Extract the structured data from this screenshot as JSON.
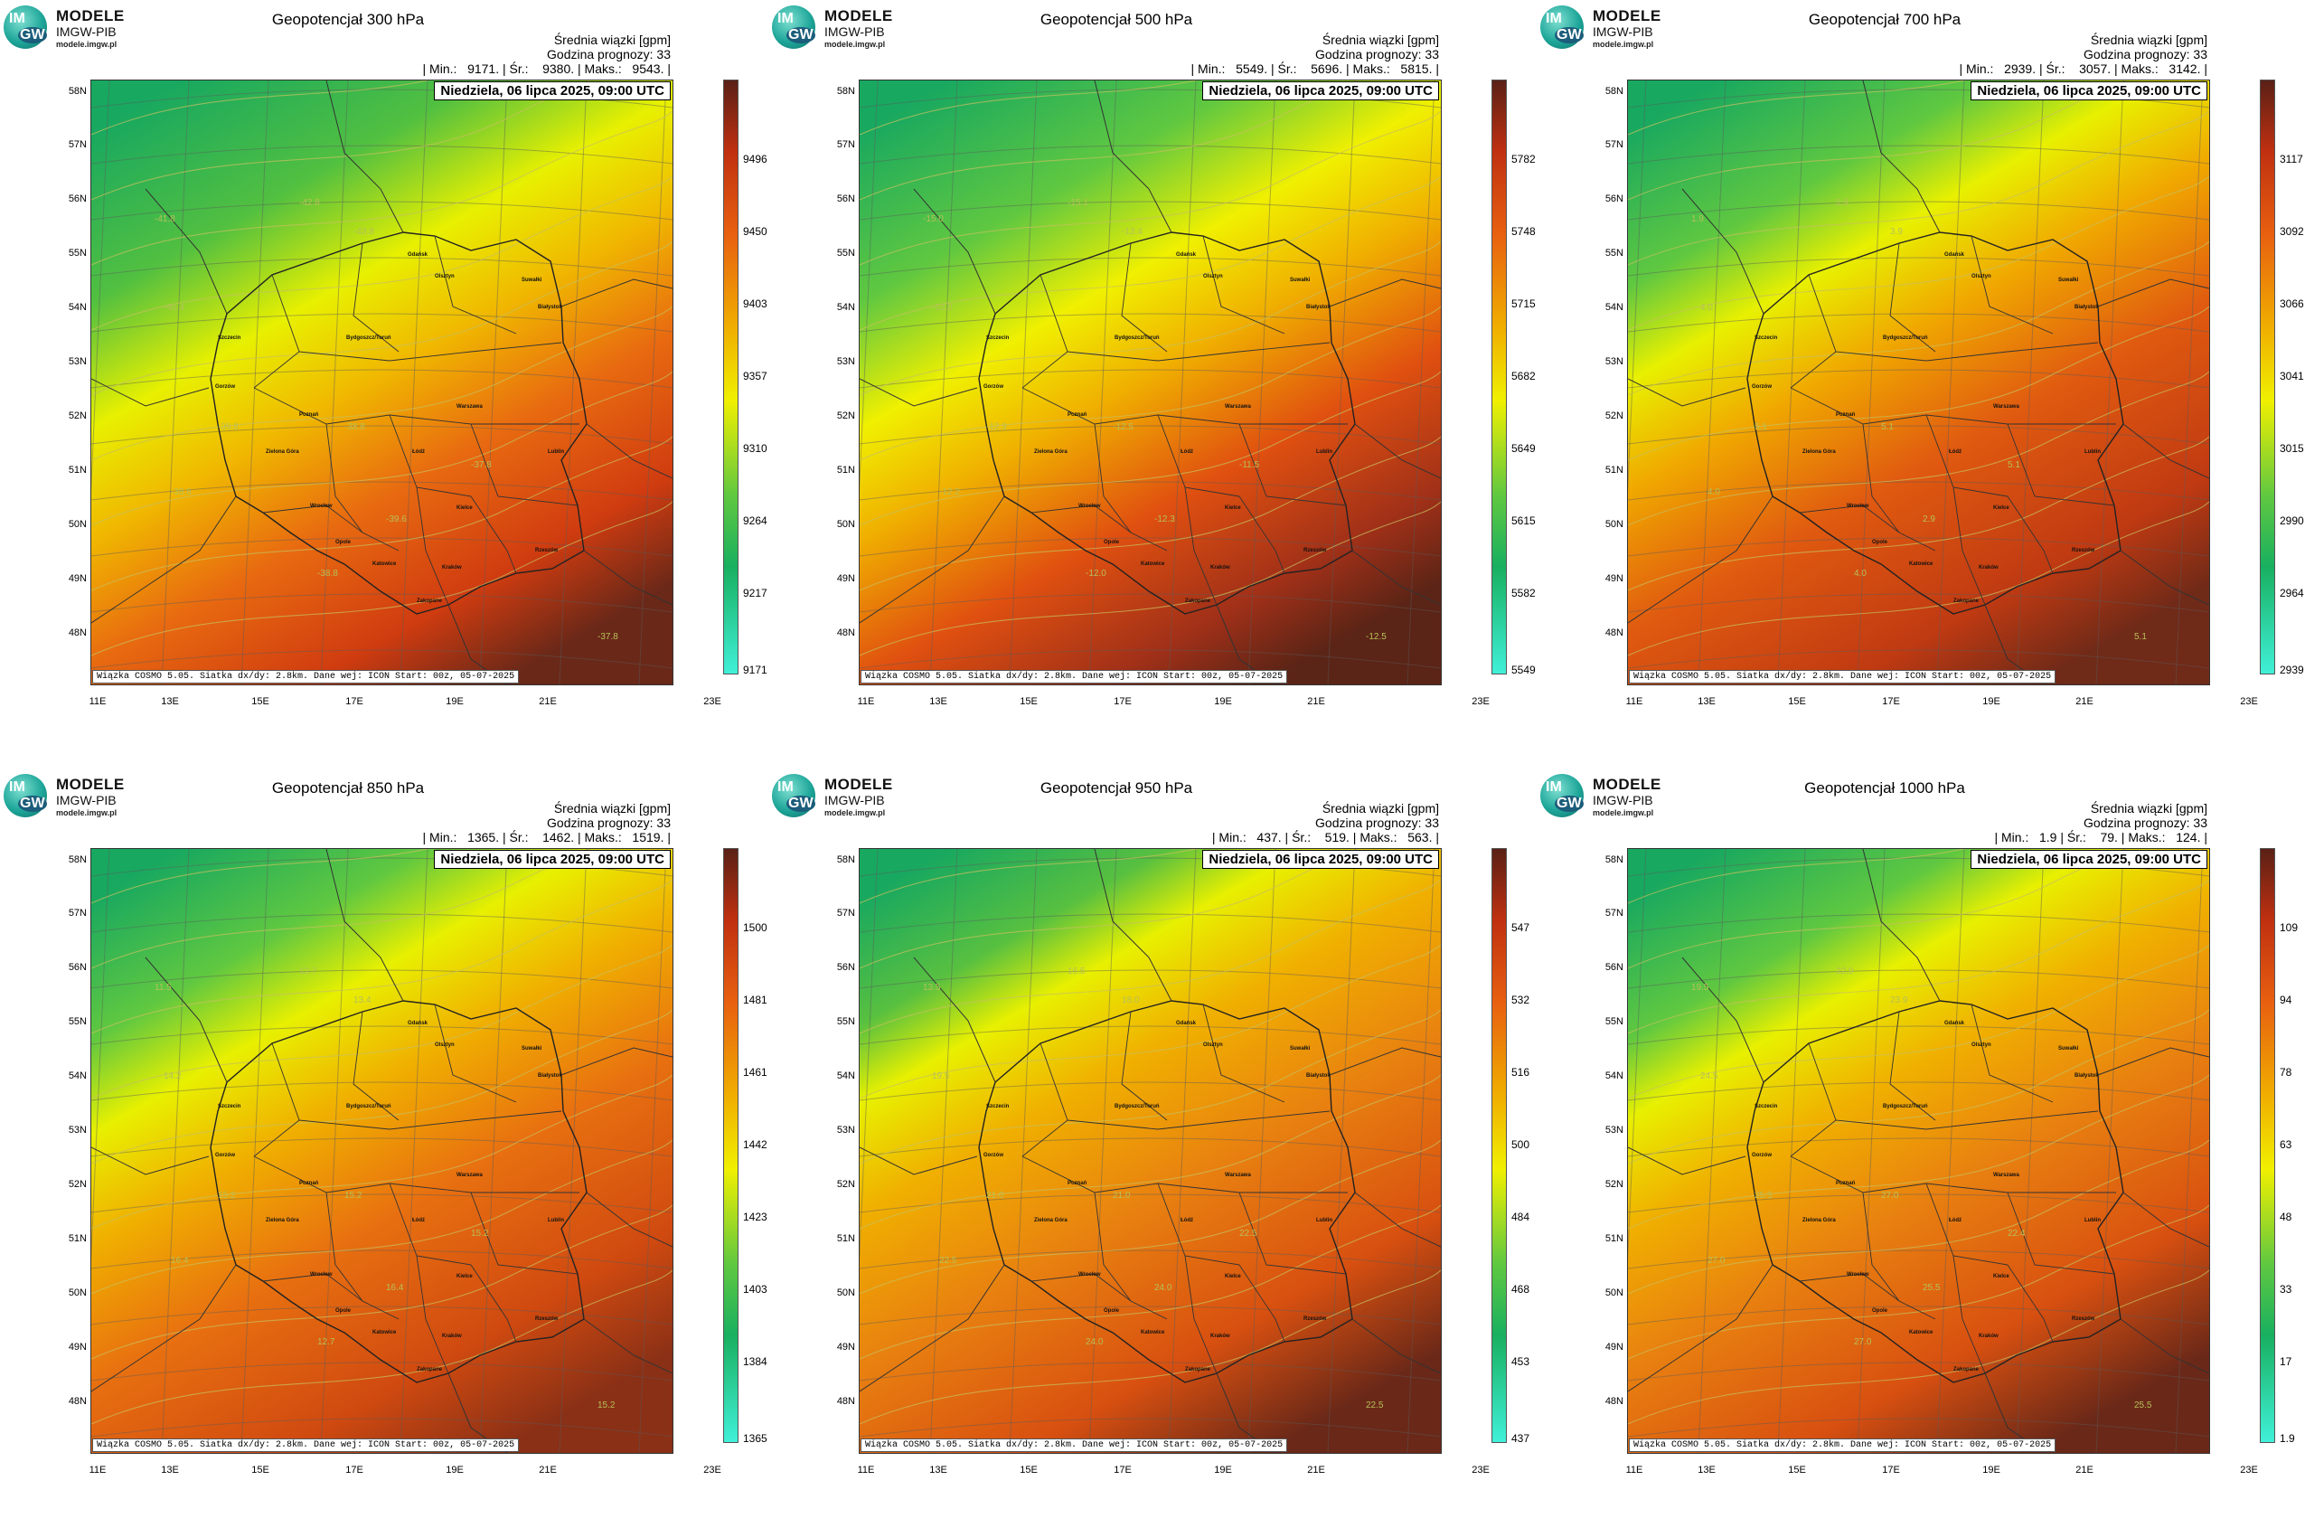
{
  "logo": {
    "im": "IM",
    "gw": "GW",
    "line1": "MODELE",
    "line2": "IMGW-PIB",
    "line3": "modele.imgw.pl"
  },
  "date": "Niedziela, 06 lipca 2025, 09:00 UTC",
  "mean_label": "Średnia wiązki [gpm]",
  "forecast_hour": "Godzina prognozy: 33",
  "footer": "Wiązka COSMO 5.05. Siatka dx/dy: 2.8km. Dane wej: ICON Start: 00z, 05-07-2025",
  "lat_labels": [
    "58N",
    "57N",
    "56N",
    "55N",
    "54N",
    "53N",
    "52N",
    "51N",
    "50N",
    "49N",
    "48N"
  ],
  "lon_labels": [
    "11E",
    "13E",
    "15E",
    "17E",
    "19E",
    "21E",
    "23E"
  ],
  "cities": [
    "Gdańsk",
    "Olsztyn",
    "Suwałki",
    "Szczecin",
    "Białystok",
    "Bydgoszcz/Toruń",
    "Gorzów",
    "Poznań",
    "Warszawa",
    "Zielona Góra",
    "Łódź",
    "Lublin",
    "Wrocław",
    "Kielce",
    "Opole",
    "Rzeszów",
    "Katowice",
    "Kraków",
    "Zakopane"
  ],
  "colors": {
    "low": "#40f0d8",
    "green": "#18b060",
    "yellow": "#f0f000",
    "orange": "#f0a000",
    "red": "#e04010",
    "darkred": "#6a2818"
  },
  "panels": [
    {
      "title": "Geopotencjał 300 hPa",
      "stats": "| Min.:   9171. | Śr.:    9380. | Maks.:   9543. |",
      "scale": [
        "9496",
        "9450",
        "9403",
        "9357",
        "9310",
        "9264",
        "9217",
        "9171"
      ],
      "contours": [
        "-41.8",
        "-42.8",
        "-43.8",
        "-40.4",
        "-39.8",
        "-38.8",
        "-38.6",
        "-39.6",
        "-37.8",
        "-38.8",
        "-37.8"
      ]
    },
    {
      "title": "Geopotencjał 500 hPa",
      "stats": "| Min.:   5549. | Śr.:    5696. | Maks.:   5815. |",
      "scale": [
        "5782",
        "5748",
        "5715",
        "5682",
        "5649",
        "5615",
        "5582",
        "5549"
      ],
      "contours": [
        "-15.0",
        "-15.1",
        "-13.4",
        "-13.0",
        "-12.9",
        "-12.5",
        "-12.2",
        "-12.3",
        "-11.5",
        "-12.0",
        "-12.5"
      ]
    },
    {
      "title": "Geopotencjał 700 hPa",
      "stats": "| Min.:   2939. | Śr.:    3057. | Maks.:   3142. |",
      "scale": [
        "3117",
        "3092",
        "3066",
        "3041",
        "3015",
        "2990",
        "2964",
        "2939"
      ],
      "contours": [
        "1.9",
        "2.9",
        "3.9",
        "4.0",
        "5.1",
        "5.1",
        "4.0",
        "2.9",
        "5.1",
        "4.0",
        "5.1"
      ]
    },
    {
      "title": "Geopotencjał 850 hPa",
      "stats": "| Min.:   1365. | Śr.:    1462. | Maks.:   1519. |",
      "scale": [
        "1500",
        "1481",
        "1461",
        "1442",
        "1423",
        "1403",
        "1384",
        "1365"
      ],
      "contours": [
        "11.5",
        "12.7",
        "13.4",
        "14.2",
        "15.2",
        "15.2",
        "16.4",
        "16.4",
        "15.2",
        "12.7",
        "15.2"
      ]
    },
    {
      "title": "Geopotencjał 950 hPa",
      "stats": "| Min.:   437. | Śr.:    519. | Maks.:   563. |",
      "scale": [
        "547",
        "532",
        "516",
        "500",
        "484",
        "468",
        "453",
        "437"
      ],
      "contours": [
        "13.5",
        "16.5",
        "18.0",
        "19.5",
        "21.0",
        "21.0",
        "22.5",
        "24.0",
        "22.5",
        "24.0",
        "22.5"
      ]
    },
    {
      "title": "Geopotencjał 1000 hPa",
      "stats": "| Min.:   1.9 | Śr.:    79. | Maks.:   124. |",
      "scale": [
        "109",
        "94",
        "78",
        "63",
        "48",
        "33",
        "17",
        "1.9"
      ],
      "contours": [
        "19.5",
        "22.9",
        "23.9",
        "24.5",
        "25.5",
        "27.0",
        "27.0",
        "25.5",
        "22.4",
        "27.0",
        "25.5"
      ]
    }
  ]
}
